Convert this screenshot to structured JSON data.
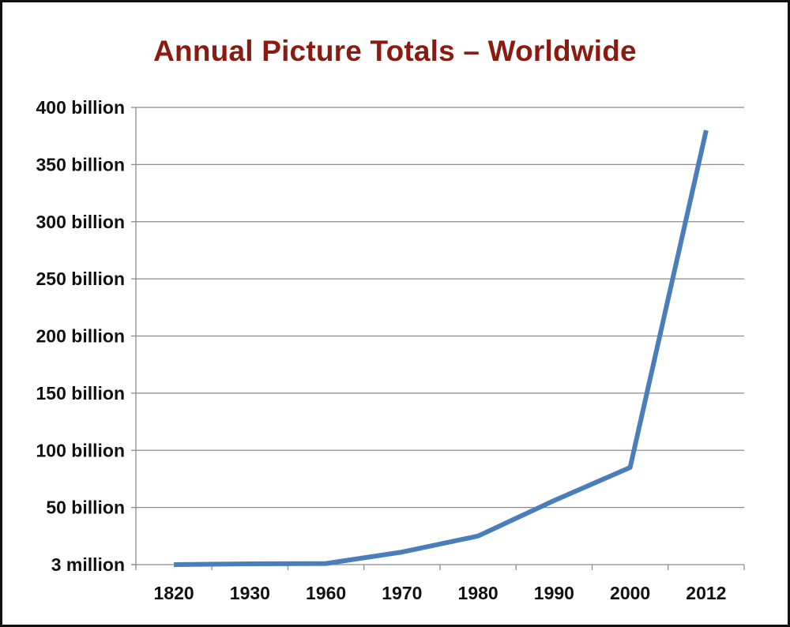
{
  "chart_data": {
    "type": "line",
    "title": "Annual Picture Totals – Worldwide",
    "xlabel": "",
    "ylabel": "",
    "categories": [
      "1820",
      "1930",
      "1960",
      "1970",
      "1980",
      "1990",
      "2000",
      "2012"
    ],
    "y_tick_labels": [
      "3 million",
      "50 billion",
      "100 billion",
      "150 billion",
      "200 billion",
      "250 billion",
      "300 billion",
      "350 billion",
      "400 billion"
    ],
    "y_tick_values": [
      0,
      50,
      100,
      150,
      200,
      250,
      300,
      350,
      400
    ],
    "ylim": [
      0,
      400
    ],
    "y_unit": "billion",
    "grid": true,
    "legend": "none",
    "series": [
      {
        "values": [
          0.003,
          0.7,
          1.0,
          11,
          25,
          56,
          85,
          380
        ],
        "color": "#4a7ebb"
      }
    ]
  }
}
